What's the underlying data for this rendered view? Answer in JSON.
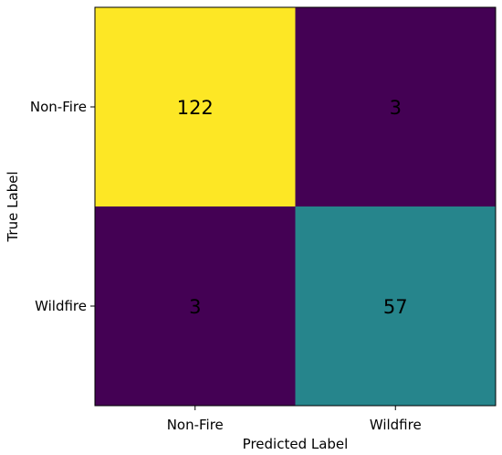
{
  "chart_data": {
    "type": "heatmap",
    "title": "",
    "xlabel": "Predicted Label",
    "ylabel": "True Label",
    "x_categories": [
      "Non-Fire",
      "Wildfire"
    ],
    "y_categories": [
      "Non-Fire",
      "Wildfire"
    ],
    "values": [
      [
        122,
        3
      ],
      [
        3,
        57
      ]
    ],
    "colormap": "viridis",
    "colors": {
      "max": "#fde725",
      "mid": "#21918c",
      "min": "#440154",
      "text_on_dark": "#000000",
      "text_on_light": "#000000",
      "frame": "#000000"
    },
    "grid": false,
    "legend": "none"
  }
}
